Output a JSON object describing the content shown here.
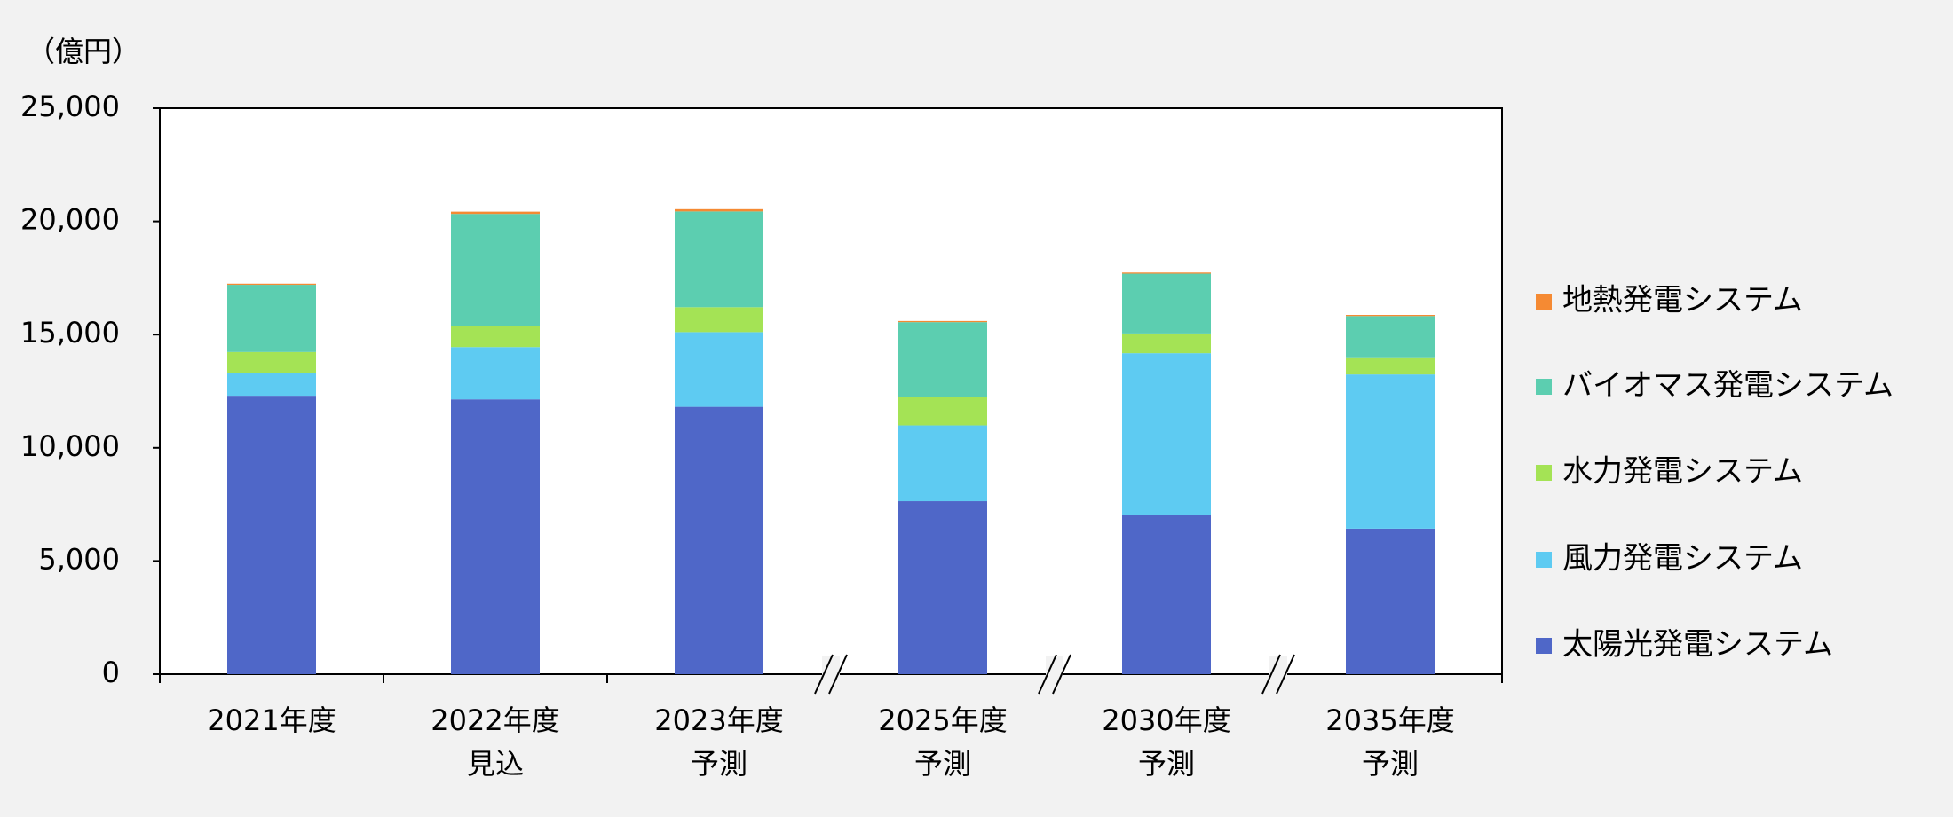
{
  "chart_data": {
    "type": "stacked_bar",
    "y_label": "（億円）",
    "categories": [
      "2021年度",
      "2022年度\n見込",
      "2023年度\n予測",
      "2025年度\n予測",
      "2030年度\n予測",
      "2035年度\n予測"
    ],
    "series": [
      {
        "name": "太陽光発電システム",
        "color": "#4f67c8",
        "values": [
          12300,
          12140,
          11810,
          7640,
          7030,
          6430
        ]
      },
      {
        "name": "風力発電システム",
        "color": "#5ecbf2",
        "values": [
          1000,
          2310,
          3300,
          3350,
          7150,
          6810
        ]
      },
      {
        "name": "水力発電システム",
        "color": "#a4e355",
        "values": [
          930,
          930,
          1100,
          1260,
          870,
          720
        ]
      },
      {
        "name": "バイオマス発電システム",
        "color": "#5cceb0",
        "values": [
          2970,
          4950,
          4230,
          3300,
          2640,
          1860
        ]
      },
      {
        "name": "地熱発電システム",
        "color": "#f58a33",
        "values": [
          50,
          100,
          100,
          50,
          50,
          50
        ]
      }
    ],
    "ylim": [
      0,
      25000
    ],
    "yticks": [
      0,
      {
        "value": 5000,
        "label": "5,000"
      },
      {
        "value": 10000,
        "label": "10,000"
      },
      {
        "value": 15000,
        "label": "15,000"
      },
      {
        "value": 20000,
        "label": "20,000"
      },
      {
        "value": 25000,
        "label": "25,000"
      }
    ],
    "legend": "right"
  }
}
